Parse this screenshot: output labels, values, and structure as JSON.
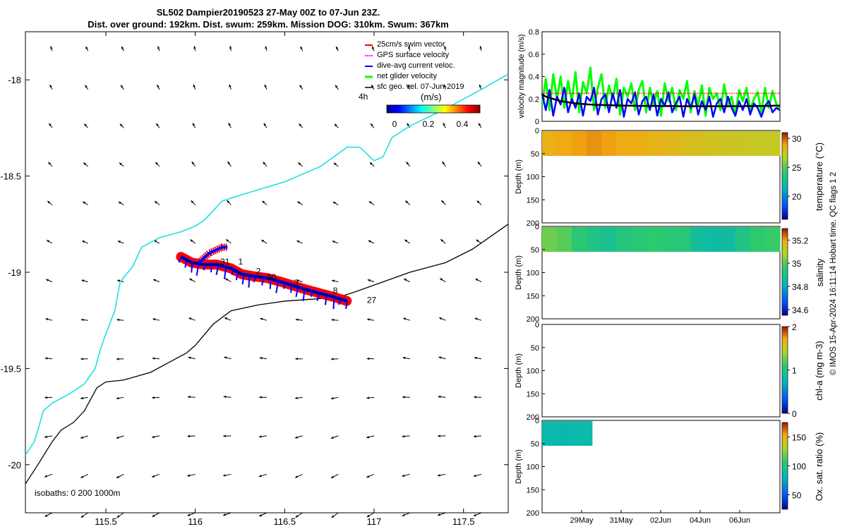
{
  "title": {
    "line1": "SL502 Dampier20190523 27-May 00Z to 07-Jun 23Z.",
    "line2": "Dist. over ground: 192km. Dist. swum: 259km. Mission DOG: 310km. Swum: 367km"
  },
  "credit": "© IMOS 15-Apr-2024 16:11:14 Hobart time. QC flags 1  2",
  "chart_data": [
    {
      "type": "scatter",
      "name": "track-map",
      "xlim": [
        115.05,
        117.75
      ],
      "ylim": [
        -20.25,
        -17.75
      ],
      "x_ticks": [
        115.5,
        116,
        116.5,
        117,
        117.5
      ],
      "x_tick_labels": [
        "115.5",
        "116",
        "116.5",
        "117",
        "117.5"
      ],
      "y_ticks": [
        -18,
        -18.5,
        -19,
        -19.5,
        -20
      ],
      "y_tick_labels": [
        "-18",
        "-18.5",
        "-19",
        "-19.5",
        "-20"
      ],
      "legend": {
        "position": "top-right",
        "items": [
          {
            "label": "25cm/s swim vector",
            "color": "#ff0000"
          },
          {
            "label": "GPS surface velocity",
            "color": "#ff00ff"
          },
          {
            "label": "dive-avg current veloc.",
            "color": "#0000ff"
          },
          {
            "label": "net glider velocity",
            "color": "#00ff00"
          },
          {
            "label": "sfc geo. vel. 07-Jun-2019",
            "color": "#000000"
          }
        ]
      },
      "time_label": "4h",
      "colorbar": {
        "label": "(m/s)",
        "ticks": [
          "0",
          "0.2",
          "0.4"
        ],
        "range": [
          0,
          0.5
        ]
      },
      "isobath_label": "isobaths: 0   200  1000m",
      "isobath_200": [
        [
          115.05,
          -19.95
        ],
        [
          115.1,
          -19.88
        ],
        [
          115.12,
          -19.82
        ],
        [
          115.15,
          -19.72
        ],
        [
          115.2,
          -19.68
        ],
        [
          115.3,
          -19.63
        ],
        [
          115.38,
          -19.58
        ],
        [
          115.44,
          -19.5
        ],
        [
          115.47,
          -19.4
        ],
        [
          115.5,
          -19.32
        ],
        [
          115.55,
          -19.2
        ],
        [
          115.58,
          -19.05
        ],
        [
          115.65,
          -18.97
        ],
        [
          115.7,
          -18.87
        ],
        [
          115.8,
          -18.82
        ],
        [
          115.92,
          -18.79
        ],
        [
          116.0,
          -18.76
        ],
        [
          116.05,
          -18.73
        ],
        [
          116.1,
          -18.68
        ],
        [
          116.15,
          -18.63
        ],
        [
          116.25,
          -18.6
        ],
        [
          116.5,
          -18.53
        ],
        [
          116.7,
          -18.45
        ],
        [
          116.85,
          -18.35
        ],
        [
          116.92,
          -18.35
        ],
        [
          117.0,
          -18.42
        ],
        [
          117.05,
          -18.4
        ],
        [
          117.1,
          -18.3
        ],
        [
          117.2,
          -18.24
        ],
        [
          117.4,
          -18.15
        ],
        [
          117.6,
          -18.05
        ],
        [
          117.75,
          -17.97
        ]
      ],
      "isobath_1000": [
        [
          115.05,
          -20.1
        ],
        [
          115.12,
          -20.0
        ],
        [
          115.2,
          -19.88
        ],
        [
          115.25,
          -19.82
        ],
        [
          115.32,
          -19.78
        ],
        [
          115.38,
          -19.72
        ],
        [
          115.45,
          -19.6
        ],
        [
          115.5,
          -19.57
        ],
        [
          115.6,
          -19.56
        ],
        [
          115.75,
          -19.52
        ],
        [
          115.85,
          -19.47
        ],
        [
          115.95,
          -19.42
        ],
        [
          116.0,
          -19.38
        ],
        [
          116.1,
          -19.27
        ],
        [
          116.2,
          -19.2
        ],
        [
          116.35,
          -19.17
        ],
        [
          116.5,
          -19.15
        ],
        [
          116.65,
          -19.14
        ],
        [
          116.8,
          -19.13
        ],
        [
          116.9,
          -19.1
        ],
        [
          117.05,
          -19.05
        ],
        [
          117.2,
          -19.0
        ],
        [
          117.4,
          -18.95
        ],
        [
          117.55,
          -18.88
        ],
        [
          117.75,
          -18.75
        ]
      ],
      "glider_track": [
        [
          115.92,
          -18.92
        ],
        [
          115.98,
          -18.95
        ],
        [
          116.05,
          -18.96
        ],
        [
          116.12,
          -18.96
        ],
        [
          116.2,
          -18.98
        ],
        [
          116.26,
          -19.01
        ],
        [
          116.32,
          -19.02
        ],
        [
          116.4,
          -19.03
        ],
        [
          116.48,
          -19.05
        ],
        [
          116.55,
          -19.07
        ],
        [
          116.62,
          -19.09
        ],
        [
          116.7,
          -19.11
        ],
        [
          116.78,
          -19.13
        ],
        [
          116.85,
          -19.15
        ]
      ],
      "track_branch": [
        [
          116.02,
          -18.95
        ],
        [
          116.08,
          -18.9
        ],
        [
          116.15,
          -18.87
        ],
        [
          116.18,
          -18.87
        ]
      ],
      "track_day_labels": [
        {
          "text": "31",
          "x": 116.14,
          "y": -18.96
        },
        {
          "text": "1",
          "x": 116.24,
          "y": -18.96
        },
        {
          "text": "2",
          "x": 116.34,
          "y": -19.01
        },
        {
          "text": "30",
          "x": 116.4,
          "y": -19.04
        },
        {
          "text": "3",
          "x": 116.55,
          "y": -19.07
        },
        {
          "text": "8",
          "x": 116.77,
          "y": -19.11
        },
        {
          "text": "27",
          "x": 116.96,
          "y": -19.16
        }
      ]
    },
    {
      "type": "line",
      "name": "velocity-panel",
      "ylabel": "velocity magnitude (m/s)",
      "ylim": [
        0,
        0.8
      ],
      "y_ticks": [
        0,
        0.2,
        0.4,
        0.6,
        0.8
      ],
      "y_tick_labels": [
        "0",
        "0.2",
        "0.4",
        "0.6",
        "0.8"
      ],
      "series": [
        {
          "name": "net glider velocity",
          "color": "#00ff00",
          "values": [
            0.15,
            0.38,
            0.1,
            0.42,
            0.2,
            0.4,
            0.12,
            0.36,
            0.18,
            0.44,
            0.08,
            0.35,
            0.25,
            0.48,
            0.1,
            0.3,
            0.42,
            0.12,
            0.32,
            0.2,
            0.38,
            0.06,
            0.3,
            0.22,
            0.34,
            0.1,
            0.28,
            0.36,
            0.08,
            0.3,
            0.15,
            0.27,
            0.05,
            0.34,
            0.18,
            0.3,
            0.1,
            0.28,
            0.2,
            0.36,
            0.08,
            0.27,
            0.14,
            0.32,
            0.05,
            0.3,
            0.2,
            0.25,
            0.1,
            0.33,
            0.15,
            0.22,
            0.05,
            0.28,
            0.18,
            0.3,
            0.1,
            0.2,
            0.26,
            0.08,
            0.3,
            0.12,
            0.27,
            0.16,
            0.1
          ]
        },
        {
          "name": "dive-avg current veloc.",
          "color": "#0000ff",
          "values": [
            0.25,
            0.1,
            0.28,
            0.05,
            0.22,
            0.15,
            0.3,
            0.08,
            0.2,
            0.12,
            0.25,
            0.05,
            0.22,
            0.18,
            0.3,
            0.06,
            0.2,
            0.24,
            0.08,
            0.25,
            0.12,
            0.28,
            0.04,
            0.2,
            0.16,
            0.26,
            0.06,
            0.18,
            0.22,
            0.1,
            0.24,
            0.05,
            0.2,
            0.14,
            0.26,
            0.08,
            0.16,
            0.22,
            0.04,
            0.2,
            0.12,
            0.24,
            0.06,
            0.18,
            0.1,
            0.22,
            0.04,
            0.16,
            0.2,
            0.08,
            0.22,
            0.12,
            0.05,
            0.18,
            0.1,
            0.2,
            0.06,
            0.16,
            0.12,
            0.04,
            0.14,
            0.18,
            0.08,
            0.12,
            0.1
          ]
        },
        {
          "name": "25cm/s swim vector",
          "color": "#ff0000",
          "values": [
            0.25,
            0.25,
            0.25,
            0.25,
            0.25,
            0.25,
            0.25,
            0.25,
            0.25,
            0.25,
            0.25,
            0.25,
            0.25,
            0.25,
            0.25,
            0.25,
            0.25,
            0.25,
            0.25,
            0.25,
            0.25,
            0.25,
            0.25,
            0.25,
            0.25,
            0.25,
            0.25,
            0.25,
            0.25,
            0.25,
            0.25,
            0.25,
            0.25,
            0.25,
            0.25,
            0.25,
            0.25,
            0.25,
            0.25,
            0.25,
            0.25,
            0.25,
            0.25,
            0.25,
            0.25,
            0.25,
            0.25,
            0.25,
            0.25,
            0.25,
            0.25,
            0.25,
            0.25,
            0.25,
            0.25,
            0.25,
            0.25,
            0.25,
            0.25,
            0.25,
            0.25,
            0.25,
            0.25,
            0.25,
            0.25
          ]
        },
        {
          "name": "sfc geo. vel. 07-Jun-2019",
          "color": "#000000",
          "values": [
            0.24,
            0.22,
            0.21,
            0.2,
            0.19,
            0.18,
            0.175,
            0.17,
            0.165,
            0.16,
            0.158,
            0.155,
            0.152,
            0.15,
            0.148,
            0.147,
            0.146,
            0.145,
            0.144,
            0.143,
            0.142,
            0.141,
            0.14,
            0.14,
            0.139,
            0.139,
            0.138,
            0.138,
            0.138,
            0.137,
            0.137,
            0.137,
            0.136,
            0.136,
            0.136,
            0.136,
            0.136,
            0.135,
            0.135,
            0.135,
            0.135,
            0.135,
            0.135,
            0.135,
            0.135,
            0.135,
            0.135,
            0.135,
            0.135,
            0.135,
            0.135,
            0.135,
            0.135,
            0.135,
            0.135,
            0.136,
            0.136,
            0.136,
            0.137,
            0.137,
            0.138,
            0.138,
            0.139,
            0.14,
            0.14
          ]
        }
      ]
    },
    {
      "type": "heatmap",
      "name": "temperature-section",
      "ylabel": "Depth (m)",
      "ylim": [
        0,
        200
      ],
      "y_tick_labels": [
        "0",
        "50",
        "100",
        "150",
        "200"
      ],
      "colorbar_label": "temperature (°C)",
      "colorbar_ticks": [
        "30",
        "25",
        "20"
      ],
      "colorbar_range": [
        16,
        31
      ],
      "data_depth_max": 55,
      "data_time_range": [
        0,
        1
      ],
      "segments": [
        28.5,
        28.8,
        29.0,
        29.2,
        29.0,
        28.7,
        28.6,
        28.4,
        28.2,
        28.0,
        27.8,
        27.6,
        27.5,
        27.4,
        27.3,
        27.3
      ]
    },
    {
      "type": "heatmap",
      "name": "salinity-section",
      "ylabel": "Depth (m)",
      "ylim": [
        0,
        200
      ],
      "y_tick_labels": [
        "0",
        "50",
        "100",
        "150",
        "200"
      ],
      "colorbar_label": "salinity",
      "colorbar_ticks": [
        "35.2",
        "35",
        "34.8",
        "34.6"
      ],
      "colorbar_range": [
        34.55,
        35.3
      ],
      "data_depth_max": 55,
      "data_time_range": [
        0,
        1
      ],
      "segments": [
        35.02,
        35.0,
        34.95,
        34.92,
        34.9,
        34.93,
        34.95,
        34.96,
        34.95,
        34.94,
        34.88,
        34.86,
        34.87,
        34.92,
        34.96,
        34.97
      ]
    },
    {
      "type": "heatmap",
      "name": "chla-section",
      "ylabel": "Depth (m)",
      "ylim": [
        0,
        200
      ],
      "y_tick_labels": [
        "0",
        "50",
        "100",
        "150",
        "200"
      ],
      "colorbar_label": "chl-a (mg m-3)",
      "colorbar_ticks": [
        "2",
        "1",
        "0"
      ],
      "colorbar_range": [
        0,
        2
      ],
      "segments": []
    },
    {
      "type": "heatmap",
      "name": "oxygen-section",
      "ylabel": "Depth (m)",
      "ylim": [
        0,
        200
      ],
      "y_tick_labels": [
        "0",
        "50",
        "100",
        "150",
        "200"
      ],
      "x_tick_labels": [
        "29May",
        "31May",
        "02Jun",
        "04Jun",
        "06Jun"
      ],
      "colorbar_label": "Ox. sat. ratio (%)",
      "colorbar_ticks": [
        "150",
        "100",
        "50"
      ],
      "colorbar_range": [
        25,
        175
      ],
      "data_depth_max": 55,
      "data_time_range": [
        0,
        0.21
      ],
      "segments": [
        85,
        84,
        86,
        85
      ]
    }
  ]
}
